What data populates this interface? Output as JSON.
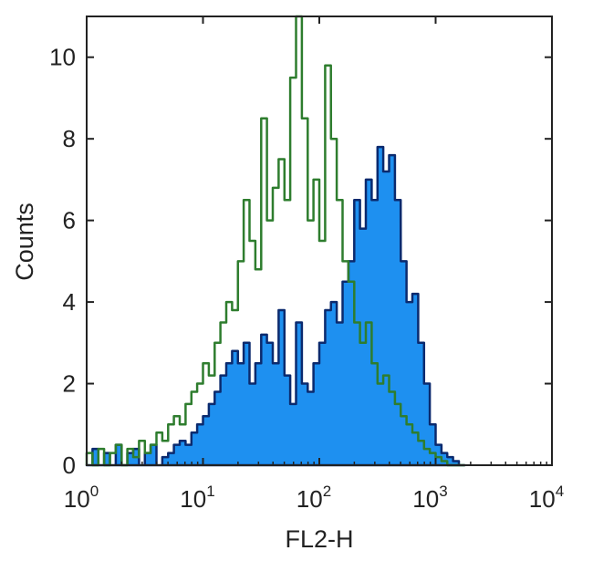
{
  "chart_data": {
    "type": "area",
    "title": "",
    "xlabel": "FL2-H",
    "ylabel": "Counts",
    "xscale": "log",
    "xlim": [
      1,
      10000
    ],
    "ylim": [
      0,
      11
    ],
    "grid": false,
    "x_tick_labels": [
      {
        "base": "10",
        "exp": "0"
      },
      {
        "base": "10",
        "exp": "1"
      },
      {
        "base": "10",
        "exp": "2"
      },
      {
        "base": "10",
        "exp": "3"
      },
      {
        "base": "10",
        "exp": "4"
      }
    ],
    "x_ticks": [
      1,
      10,
      100,
      1000,
      10000
    ],
    "y_ticks": [
      0,
      2,
      4,
      6,
      8,
      10
    ],
    "y_tick_labels": [
      "0",
      "2",
      "4",
      "6",
      "8",
      "10"
    ],
    "log10_x": [
      0.0,
      0.05,
      0.1,
      0.15,
      0.2,
      0.25,
      0.3,
      0.35,
      0.4,
      0.45,
      0.5,
      0.55,
      0.6,
      0.65,
      0.7,
      0.75,
      0.8,
      0.85,
      0.9,
      0.95,
      1.0,
      1.05,
      1.1,
      1.15,
      1.2,
      1.25,
      1.3,
      1.35,
      1.4,
      1.45,
      1.5,
      1.55,
      1.6,
      1.65,
      1.7,
      1.75,
      1.8,
      1.85,
      1.9,
      1.95,
      2.0,
      2.05,
      2.1,
      2.15,
      2.2,
      2.25,
      2.3,
      2.35,
      2.4,
      2.45,
      2.5,
      2.55,
      2.6,
      2.65,
      2.7,
      2.75,
      2.8,
      2.85,
      2.9,
      2.95,
      3.0,
      3.05,
      3.1,
      3.15,
      3.2
    ],
    "series": [
      {
        "style": "outline",
        "color": "#2e7d2e",
        "values": [
          0.3,
          0,
          0.4,
          0,
          0.3,
          0.5,
          0,
          0.4,
          0.2,
          0.6,
          0.3,
          0.5,
          0.8,
          0.6,
          1.0,
          1.2,
          1.0,
          1.5,
          1.8,
          2.0,
          2.5,
          2.2,
          3.0,
          3.5,
          4.0,
          3.8,
          5.0,
          6.5,
          5.5,
          4.8,
          8.5,
          6.0,
          6.8,
          7.5,
          6.5,
          9.5,
          11.0,
          8.5,
          6.0,
          7.0,
          5.5,
          9.8,
          8.0,
          6.5,
          5.0,
          4.5,
          3.5,
          3.0,
          3.5,
          2.5,
          2.0,
          2.2,
          1.8,
          1.5,
          1.2,
          1.0,
          0.8,
          0.6,
          0.4,
          0.3,
          0.2,
          0.1,
          0,
          0,
          0
        ]
      },
      {
        "style": "filled",
        "color": "#1e90f0",
        "edge_color": "#0b2a6e",
        "values": [
          0,
          0.4,
          0,
          0.3,
          0,
          0.5,
          0,
          0.3,
          0.4,
          0,
          0.3,
          0.5,
          0,
          0.2,
          0.3,
          0.5,
          0.6,
          0.5,
          0.8,
          1.0,
          1.2,
          1.5,
          1.8,
          2.2,
          2.5,
          2.8,
          2.5,
          3.0,
          2.0,
          2.5,
          3.2,
          3.0,
          2.5,
          3.8,
          2.2,
          1.5,
          3.5,
          2.0,
          1.8,
          2.5,
          3.0,
          3.8,
          4.0,
          3.5,
          4.5,
          5.0,
          6.5,
          5.8,
          7.0,
          6.5,
          7.8,
          7.2,
          7.6,
          6.5,
          5.0,
          4.0,
          4.2,
          3.0,
          2.0,
          1.0,
          0.5,
          0.3,
          0.2,
          0.1,
          0
        ]
      }
    ]
  }
}
